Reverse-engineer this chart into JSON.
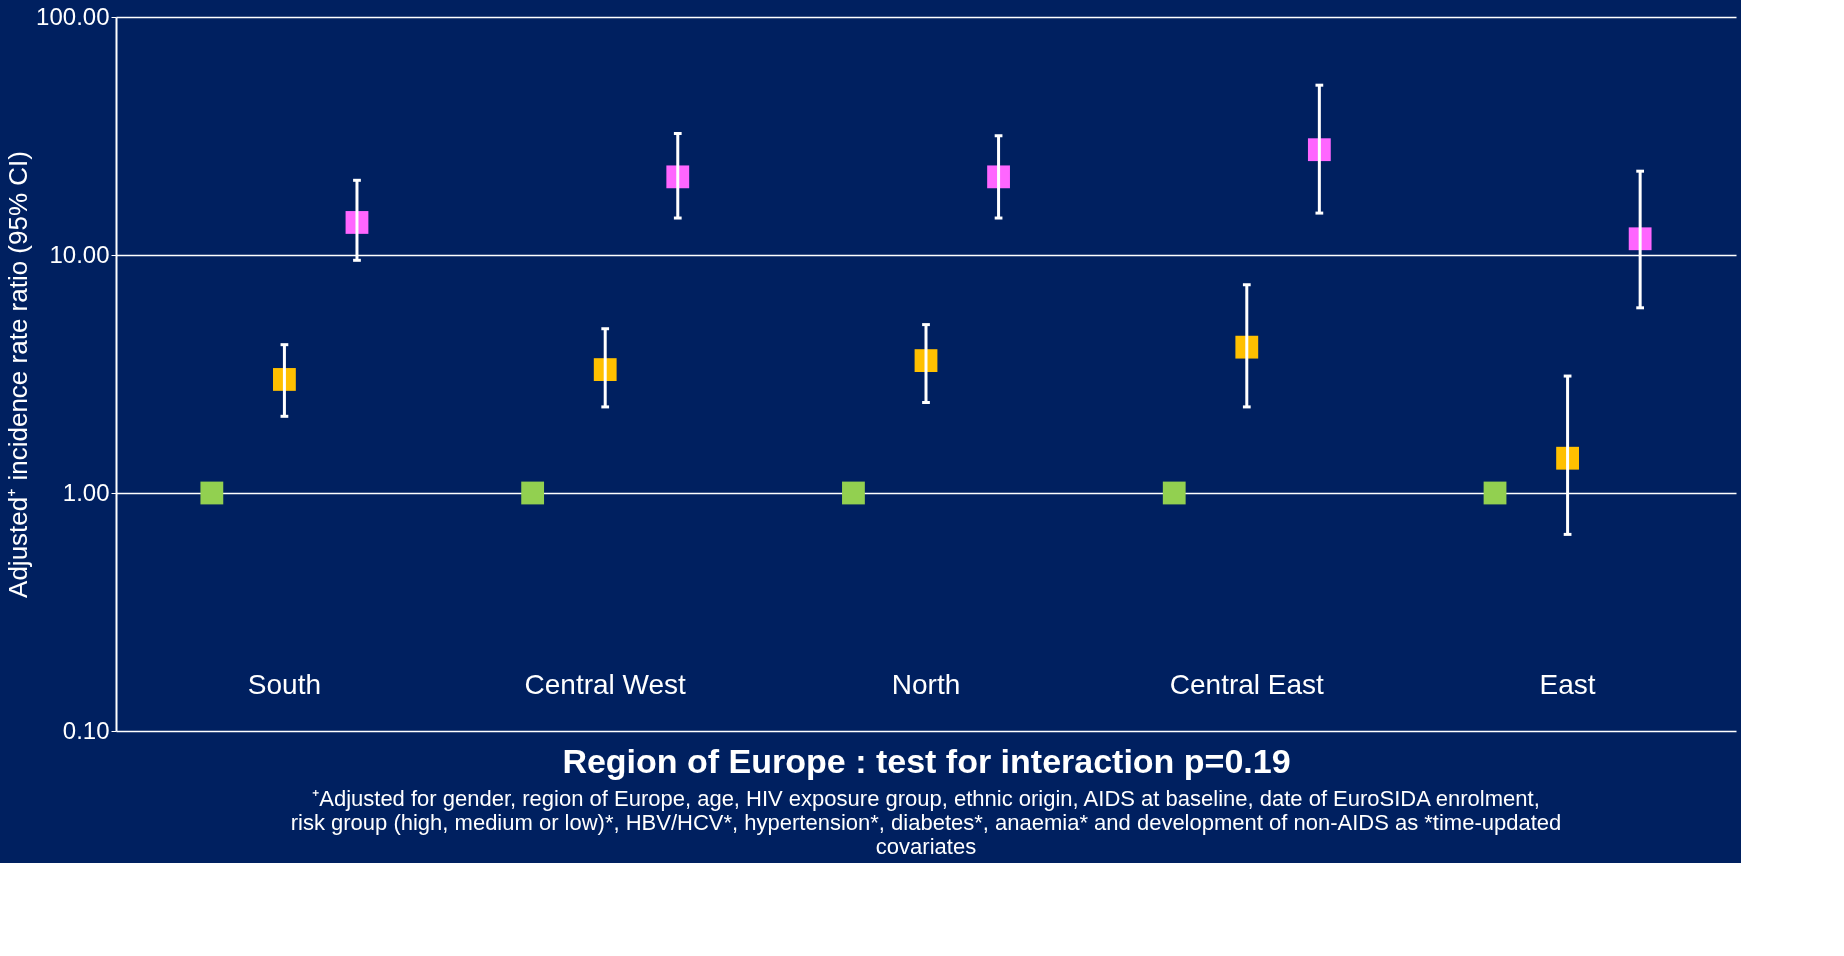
{
  "chart_data": {
    "type": "scatter",
    "xlabel": "Region of Europe : test for interaction p=0.19",
    "ylabel": "Adjusted⁺ incidence rate ratio (95% CI)",
    "annotations": [
      "⁺Adjusted for gender, region of Europe, age, HIV exposure group, ethnic origin, AIDS at baseline, date of EuroSIDA enrolment, risk group (high, medium or low)*, HBV/HCV*, hypertension*, diabetes*, anaemia* and development of non-AIDS as *time-updated covariates"
    ],
    "categories": [
      "South",
      "Central West",
      "North",
      "Central East",
      "East"
    ],
    "series": [
      {
        "color": "#92d050",
        "values": [
          1.0,
          1.0,
          1.0,
          1.0,
          1.0
        ],
        "errors": [
          null,
          null,
          null,
          null,
          null
        ]
      },
      {
        "color": "#ffc000",
        "values": [
          3.0,
          3.3,
          3.6,
          4.1,
          1.4
        ],
        "errors": [
          [
            2.1,
            4.2
          ],
          [
            2.3,
            4.9
          ],
          [
            2.4,
            5.1
          ],
          [
            2.3,
            7.5
          ],
          [
            0.67,
            3.1
          ]
        ]
      },
      {
        "color": "#ff66ff",
        "values": [
          13.7,
          21.3,
          21.3,
          27.7,
          11.7
        ],
        "errors": [
          [
            9.5,
            20.6
          ],
          [
            14.3,
            32.4
          ],
          [
            14.3,
            31.7
          ],
          [
            15.0,
            51.7
          ],
          [
            6.0,
            22.5
          ]
        ]
      }
    ],
    "log": "y",
    "ylim": [
      0.1,
      100
    ],
    "yticks": [
      {
        "value": 0.1,
        "label": "0.10"
      },
      {
        "value": 1,
        "label": "1.00"
      },
      {
        "value": 10,
        "label": "10.00"
      },
      {
        "value": 100,
        "label": "100.00"
      }
    ],
    "grid": "y",
    "marker": "square"
  }
}
